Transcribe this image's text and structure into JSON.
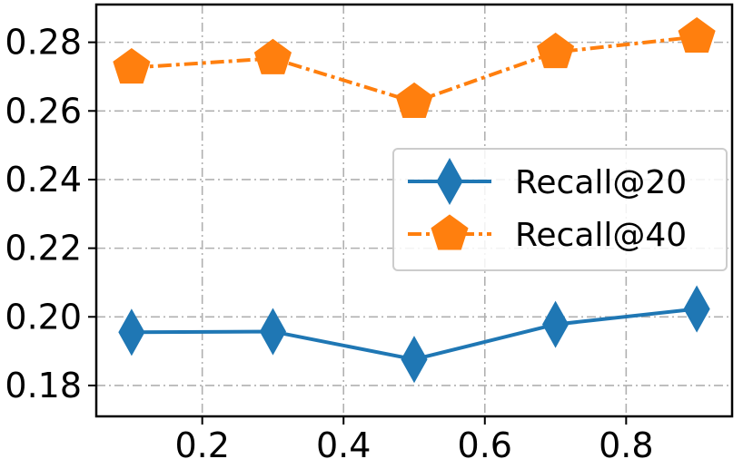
{
  "chart_data": {
    "type": "line",
    "title": "",
    "xlabel": "",
    "ylabel": "",
    "xlim": [
      0.05,
      0.95
    ],
    "ylim": [
      0.171,
      0.291
    ],
    "xticks": [
      0.2,
      0.4,
      0.6,
      0.8
    ],
    "xtick_labels": [
      "0.2",
      "0.4",
      "0.6",
      "0.8"
    ],
    "yticks": [
      0.18,
      0.2,
      0.22,
      0.24,
      0.26,
      0.28
    ],
    "ytick_labels": [
      "0.18",
      "0.20",
      "0.22",
      "0.24",
      "0.26",
      "0.28"
    ],
    "grid": true,
    "legend_position": "center-right",
    "x": [
      0.1,
      0.3,
      0.5,
      0.7,
      0.9
    ],
    "series": [
      {
        "name": "Recall@20",
        "values": [
          0.1955,
          0.1957,
          0.1876,
          0.1978,
          0.2023
        ],
        "color": "#1f77b4",
        "marker": "diamond",
        "line_style": "solid"
      },
      {
        "name": "Recall@40",
        "values": [
          0.2726,
          0.2753,
          0.2626,
          0.2771,
          0.2816
        ],
        "color": "#ff7f0e",
        "marker": "pentagon",
        "line_style": "dashdot"
      }
    ]
  }
}
